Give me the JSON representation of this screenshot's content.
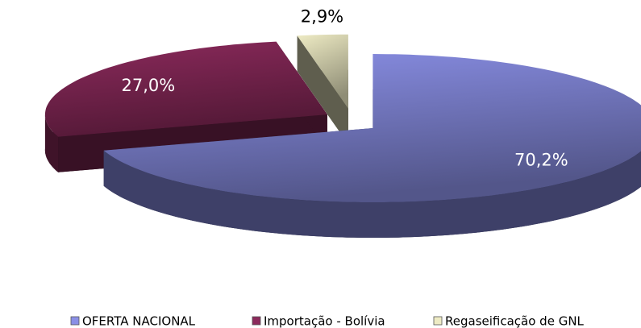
{
  "chart_data": {
    "type": "pie",
    "categories": [
      "OFERTA NACIONAL",
      "Importação - Bolívia",
      "Regaseificação de GNL"
    ],
    "values": [
      70.2,
      27.0,
      2.9
    ],
    "value_labels": [
      "70,2%",
      "27,0%",
      "2,9%"
    ],
    "colors": [
      "#8a8fe6",
      "#8c2a5c",
      "#eeebc4"
    ],
    "legend": "bottom"
  }
}
